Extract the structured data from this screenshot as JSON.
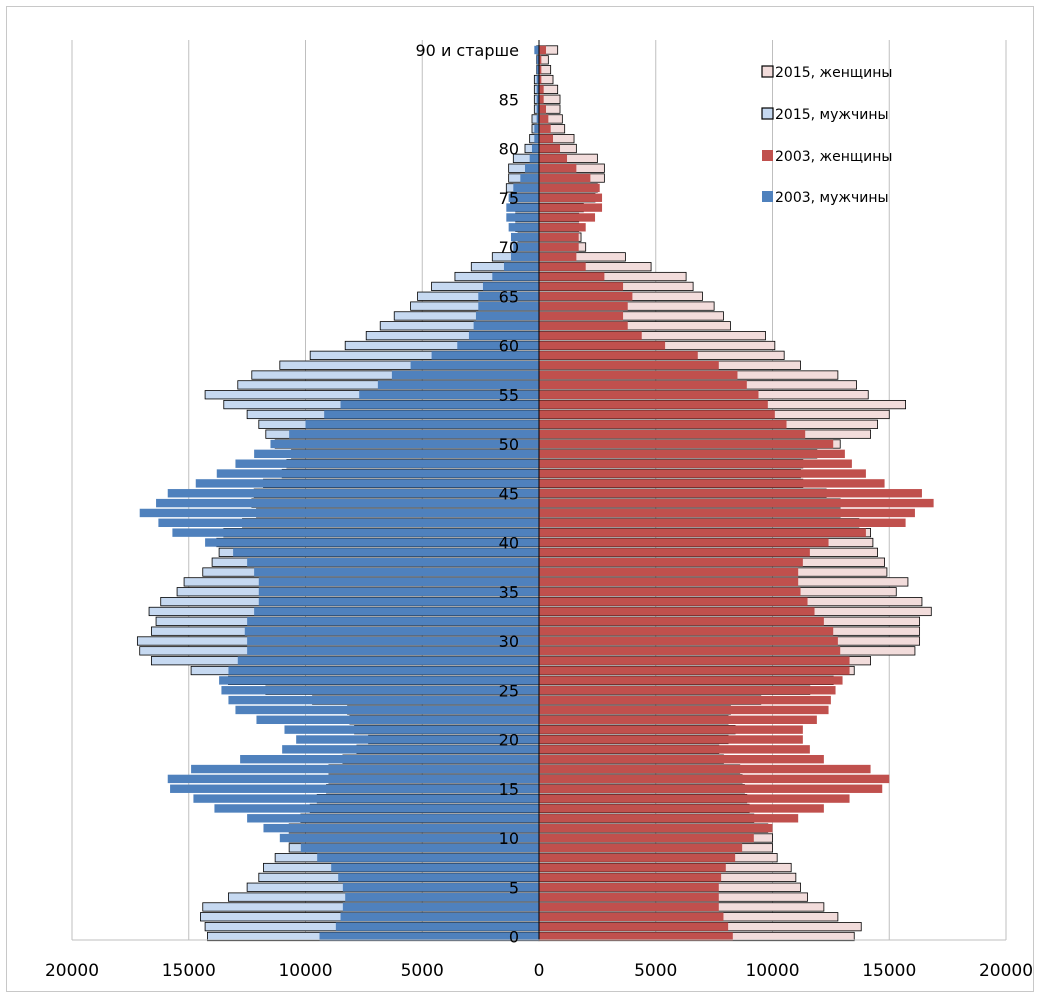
{
  "chart_data": {
    "type": "bar",
    "orientation": "population-pyramid",
    "title": "",
    "xlabel": "",
    "ylabel": "",
    "xlim": [
      -20000,
      20000
    ],
    "x_ticks": [
      {
        "value": -20000,
        "label": "20000",
        "color": "#e8262a"
      },
      {
        "value": -15000,
        "label": "15000",
        "color": "#e8262a"
      },
      {
        "value": -10000,
        "label": "10000",
        "color": "#e8262a"
      },
      {
        "value": -5000,
        "label": "5000",
        "color": "#e8262a"
      },
      {
        "value": 0,
        "label": "0",
        "color": "#000000"
      },
      {
        "value": 5000,
        "label": "5000",
        "color": "#000000"
      },
      {
        "value": 10000,
        "label": "10000",
        "color": "#000000"
      },
      {
        "value": 15000,
        "label": "15000",
        "color": "#000000"
      },
      {
        "value": 20000,
        "label": "20000",
        "color": "#000000"
      }
    ],
    "age_labels": [
      {
        "index": 0,
        "label": "0"
      },
      {
        "index": 5,
        "label": "5"
      },
      {
        "index": 10,
        "label": "10"
      },
      {
        "index": 15,
        "label": "15"
      },
      {
        "index": 20,
        "label": "20"
      },
      {
        "index": 25,
        "label": "25"
      },
      {
        "index": 30,
        "label": "30"
      },
      {
        "index": 35,
        "label": "35"
      },
      {
        "index": 40,
        "label": "40"
      },
      {
        "index": 45,
        "label": "45"
      },
      {
        "index": 50,
        "label": "50"
      },
      {
        "index": 55,
        "label": "55"
      },
      {
        "index": 60,
        "label": "60"
      },
      {
        "index": 65,
        "label": "65"
      },
      {
        "index": 70,
        "label": "70"
      },
      {
        "index": 75,
        "label": "75"
      },
      {
        "index": 80,
        "label": "80"
      },
      {
        "index": 85,
        "label": "85"
      },
      {
        "index": 90,
        "label": "90 и старше"
      }
    ],
    "grid": true,
    "legend_position": "top-right",
    "series": [
      {
        "name": "2015, женщины",
        "side": "right",
        "fill": "#f2dcdb",
        "stroke": "#000000",
        "values": [
          13500,
          13800,
          12800,
          12200,
          11500,
          11200,
          11000,
          10800,
          10200,
          10000,
          10000,
          9800,
          9200,
          9000,
          8900,
          8800,
          8700,
          8600,
          7900,
          7700,
          8100,
          8400,
          8100,
          8200,
          9500,
          11600,
          12600,
          13500,
          14200,
          16100,
          16300,
          16300,
          16300,
          16800,
          16400,
          15300,
          15800,
          14900,
          14800,
          14500,
          14300,
          14200,
          13700,
          12900,
          12900,
          12300,
          11300,
          11200,
          11300,
          11900,
          12900,
          14200,
          14500,
          15000,
          15700,
          14100,
          13600,
          12800,
          11200,
          10500,
          10100,
          9700,
          8200,
          7900,
          7500,
          7000,
          6600,
          6300,
          4800,
          3700,
          2000,
          1800,
          1700,
          1700,
          1900,
          2400,
          2500,
          2800,
          2800,
          2500,
          1600,
          1500,
          1100,
          1000,
          900,
          900,
          800,
          600,
          500,
          400,
          800
        ]
      },
      {
        "name": "2015, мужчины",
        "side": "left",
        "fill": "#c6d9f1",
        "stroke": "#000000",
        "values": [
          14200,
          14300,
          14500,
          14400,
          13300,
          12500,
          12000,
          11800,
          11300,
          10700,
          10700,
          10700,
          10200,
          9800,
          9500,
          9100,
          9000,
          9000,
          8400,
          7800,
          7300,
          7900,
          8100,
          8200,
          9700,
          11700,
          13300,
          14900,
          16600,
          17100,
          17200,
          16600,
          16400,
          16700,
          16200,
          15500,
          15200,
          14400,
          14000,
          13700,
          13800,
          13500,
          12700,
          12100,
          12300,
          12200,
          11800,
          11000,
          10800,
          10600,
          11300,
          11700,
          12000,
          12500,
          13500,
          14300,
          12900,
          12300,
          11100,
          9800,
          8300,
          7400,
          6800,
          6200,
          5500,
          5200,
          4600,
          3600,
          2900,
          2000,
          1200,
          900,
          1000,
          1000,
          1000,
          1200,
          1400,
          1300,
          1300,
          1100,
          600,
          400,
          300,
          300,
          200,
          200,
          200,
          200,
          100,
          100,
          100
        ]
      },
      {
        "name": "2003, женщины",
        "side": "right",
        "fill": "#c0504d",
        "stroke": "none",
        "values": [
          8300,
          8100,
          7900,
          7700,
          7700,
          7700,
          7800,
          8000,
          8400,
          8700,
          9200,
          10000,
          11100,
          12200,
          13300,
          14700,
          15000,
          14200,
          12200,
          11600,
          11300,
          11300,
          11900,
          12400,
          12500,
          12700,
          13000,
          13300,
          13300,
          12900,
          12800,
          12600,
          12200,
          11800,
          11500,
          11200,
          11100,
          11100,
          11300,
          11600,
          12400,
          14000,
          15700,
          16100,
          16900,
          16400,
          14800,
          14000,
          13400,
          13100,
          12600,
          11400,
          10600,
          10100,
          9800,
          9400,
          8900,
          8500,
          7700,
          6800,
          5400,
          4400,
          3800,
          3600,
          3800,
          4000,
          3600,
          2800,
          2000,
          1600,
          1700,
          1700,
          2000,
          2400,
          2700,
          2700,
          2600,
          2200,
          1600,
          1200,
          900,
          600,
          500,
          400,
          300,
          200,
          200,
          100,
          100,
          100,
          300
        ]
      },
      {
        "name": "2003, мужчины",
        "side": "left",
        "fill": "#4f81bd",
        "stroke": "none",
        "values": [
          9400,
          8700,
          8500,
          8400,
          8300,
          8400,
          8600,
          8900,
          9500,
          10200,
          11100,
          11800,
          12500,
          13900,
          14800,
          15800,
          15900,
          14900,
          12800,
          11000,
          10400,
          10900,
          12100,
          13000,
          13300,
          13600,
          13700,
          13300,
          12900,
          12500,
          12500,
          12600,
          12500,
          12200,
          12000,
          12000,
          12000,
          12200,
          12500,
          13100,
          14300,
          15700,
          16300,
          17100,
          16400,
          15900,
          14700,
          13800,
          13000,
          12200,
          11500,
          10700,
          10000,
          9200,
          8500,
          7700,
          6900,
          6300,
          5500,
          4600,
          3500,
          3000,
          2800,
          2700,
          2600,
          2600,
          2400,
          2000,
          1500,
          1200,
          1100,
          1200,
          1300,
          1400,
          1400,
          1300,
          1100,
          800,
          600,
          400,
          300,
          200,
          200,
          100,
          100,
          100,
          100,
          100,
          100,
          100,
          200
        ]
      }
    ]
  }
}
